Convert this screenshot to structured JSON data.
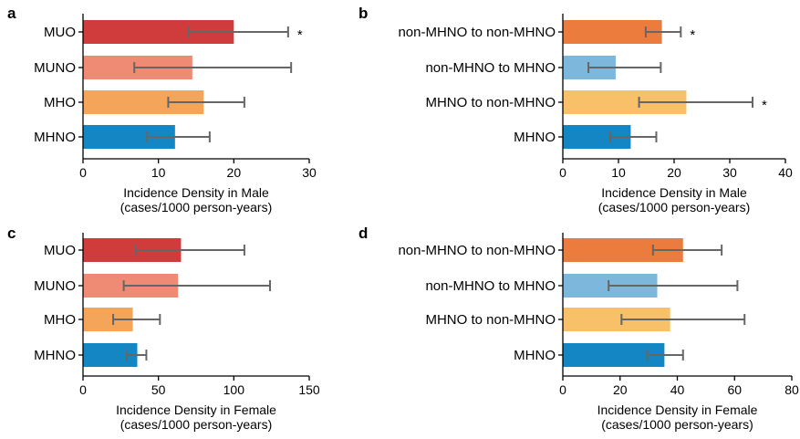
{
  "chart_data": [
    {
      "panel": "a",
      "type": "bar",
      "orientation": "horizontal",
      "categories": [
        "MUO",
        "MUNO",
        "MHO",
        "MHNO"
      ],
      "values": [
        20,
        14.5,
        16,
        12.2
      ],
      "error_low": [
        14,
        6.8,
        11.3,
        8.5
      ],
      "error_high": [
        27.2,
        27.6,
        21.4,
        16.8
      ],
      "significance": [
        "*",
        "",
        "",
        ""
      ],
      "colors": [
        "#d03c3b",
        "#ef8b75",
        "#f5a55a",
        "#1486c4"
      ],
      "xlabel": "Incidence Density in Male",
      "xlabel_units": "(cases/1000 person-years)",
      "xlim": [
        0,
        30
      ],
      "xticks": [
        0,
        10,
        20,
        30
      ]
    },
    {
      "panel": "b",
      "type": "bar",
      "orientation": "horizontal",
      "categories": [
        "non-MHNO to non-MHNO",
        "non-MHNO to MHNO",
        "MHNO to non-MHNO",
        "MHNO"
      ],
      "values": [
        17.8,
        9.5,
        22.2,
        12.2
      ],
      "error_low": [
        14.9,
        4.6,
        13.7,
        8.5
      ],
      "error_high": [
        21.2,
        17.6,
        34.1,
        16.8
      ],
      "significance": [
        "*",
        "",
        "*",
        ""
      ],
      "colors": [
        "#ec7c3d",
        "#7db7dc",
        "#f8c068",
        "#1486c4"
      ],
      "xlabel": "Incidence Density in Male",
      "xlabel_units": "(cases/1000 person-years)",
      "xlim": [
        0,
        40
      ],
      "xticks": [
        0,
        10,
        20,
        30,
        40
      ]
    },
    {
      "panel": "c",
      "type": "bar",
      "orientation": "horizontal",
      "categories": [
        "MUO",
        "MUNO",
        "MHO",
        "MHNO"
      ],
      "values": [
        65,
        63,
        33,
        36
      ],
      "error_low": [
        35,
        27,
        20,
        29
      ],
      "error_high": [
        107,
        124,
        51,
        42
      ],
      "significance": [
        "",
        "",
        "",
        ""
      ],
      "colors": [
        "#d03c3b",
        "#ef8b75",
        "#f5a55a",
        "#1486c4"
      ],
      "xlabel": "Incidence Density in Female",
      "xlabel_units": "(cases/1000 person-years)",
      "xlim": [
        0,
        150
      ],
      "xticks": [
        0,
        50,
        100,
        150
      ]
    },
    {
      "panel": "d",
      "type": "bar",
      "orientation": "horizontal",
      "categories": [
        "non-MHNO to non-MHNO",
        "non-MHNO to MHNO",
        "MHNO to non-MHNO",
        "MHNO"
      ],
      "values": [
        42,
        33,
        37.5,
        35.5
      ],
      "error_low": [
        31.5,
        16,
        20.5,
        29.5
      ],
      "error_high": [
        55.5,
        61,
        63.5,
        42
      ],
      "significance": [
        "",
        "",
        "",
        ""
      ],
      "colors": [
        "#ec7c3d",
        "#7db7dc",
        "#f8c068",
        "#1486c4"
      ],
      "xlabel": "Incidence Density in Female",
      "xlabel_units": "(cases/1000 person-years)",
      "xlim": [
        0,
        80
      ],
      "xticks": [
        0,
        20,
        40,
        60,
        80
      ]
    }
  ]
}
